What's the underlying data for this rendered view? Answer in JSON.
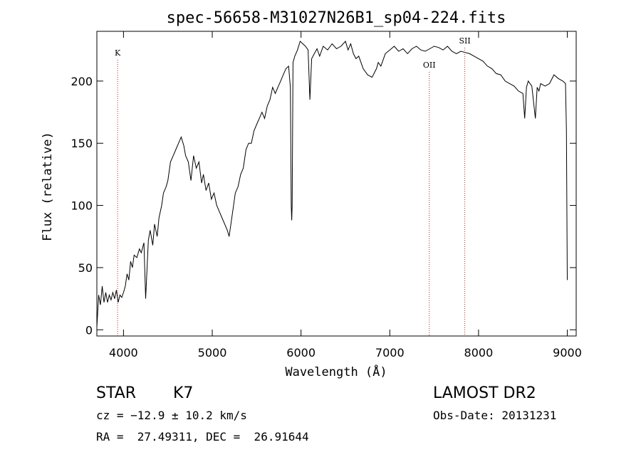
{
  "chart_data": {
    "type": "line",
    "title": "spec-56658-M31027N26B1_sp04-224.fits",
    "xlabel": "Wavelength (Å)",
    "ylabel": "Flux (relative)",
    "xlim": [
      3700,
      9100
    ],
    "ylim": [
      -5,
      240
    ],
    "x_ticks": [
      4000,
      5000,
      6000,
      7000,
      8000,
      9000
    ],
    "y_ticks": [
      0,
      50,
      100,
      150,
      200
    ],
    "grid": false,
    "line_color": "#000000",
    "marker_color": "#b22222",
    "series": [
      {
        "x": [
          3700,
          3720,
          3740,
          3760,
          3780,
          3800,
          3820,
          3840,
          3860,
          3880,
          3900,
          3920,
          3940,
          3960,
          3980,
          4000,
          4020,
          4040,
          4060,
          4080,
          4100,
          4120,
          4150,
          4180,
          4200,
          4230,
          4250,
          4280,
          4300,
          4330,
          4350,
          4380,
          4400,
          4430,
          4450,
          4480,
          4500,
          4530,
          4560,
          4590,
          4620,
          4650,
          4680,
          4700,
          4730,
          4760,
          4790,
          4820,
          4850,
          4880,
          4900,
          4930,
          4960,
          4990,
          5020,
          5050,
          5080,
          5110,
          5140,
          5170,
          5190,
          5210,
          5230,
          5260,
          5290,
          5320,
          5350,
          5380,
          5410,
          5440,
          5470,
          5500,
          5530,
          5560,
          5590,
          5620,
          5650,
          5680,
          5710,
          5740,
          5770,
          5800,
          5830,
          5860,
          5880,
          5890,
          5895,
          5900,
          5910,
          5930,
          5960,
          5990,
          6020,
          6050,
          6080,
          6100,
          6120,
          6150,
          6180,
          6210,
          6250,
          6300,
          6350,
          6400,
          6450,
          6500,
          6530,
          6560,
          6590,
          6620,
          6650,
          6700,
          6750,
          6800,
          6850,
          6870,
          6900,
          6950,
          7000,
          7050,
          7100,
          7150,
          7200,
          7250,
          7300,
          7350,
          7400,
          7450,
          7500,
          7550,
          7600,
          7650,
          7700,
          7750,
          7800,
          7850,
          7900,
          7950,
          8000,
          8050,
          8100,
          8150,
          8200,
          8250,
          8300,
          8350,
          8400,
          8450,
          8500,
          8520,
          8540,
          8560,
          8600,
          8640,
          8660,
          8680,
          8700,
          8750,
          8800,
          8850,
          8900,
          8950,
          8980,
          8990,
          9000
        ],
        "y": [
          2,
          28,
          20,
          35,
          22,
          30,
          22,
          28,
          24,
          30,
          25,
          32,
          22,
          28,
          26,
          30,
          35,
          45,
          40,
          55,
          50,
          60,
          58,
          65,
          62,
          70,
          25,
          72,
          80,
          68,
          85,
          75,
          90,
          100,
          110,
          115,
          120,
          135,
          140,
          145,
          150,
          155,
          148,
          140,
          135,
          120,
          140,
          130,
          135,
          118,
          125,
          112,
          118,
          105,
          110,
          100,
          95,
          90,
          85,
          80,
          75,
          85,
          95,
          110,
          115,
          125,
          130,
          145,
          150,
          150,
          160,
          165,
          170,
          175,
          170,
          180,
          185,
          195,
          190,
          195,
          200,
          205,
          210,
          212,
          195,
          100,
          88,
          100,
          215,
          220,
          225,
          232,
          230,
          228,
          225,
          185,
          218,
          222,
          226,
          220,
          228,
          225,
          230,
          226,
          228,
          232,
          225,
          230,
          222,
          218,
          220,
          210,
          205,
          203,
          210,
          215,
          212,
          222,
          225,
          228,
          224,
          226,
          222,
          226,
          228,
          225,
          224,
          226,
          228,
          227,
          225,
          228,
          224,
          222,
          224,
          223,
          222,
          220,
          218,
          216,
          212,
          210,
          206,
          205,
          200,
          198,
          196,
          192,
          190,
          170,
          195,
          200,
          196,
          170,
          195,
          192,
          198,
          196,
          198,
          205,
          202,
          200,
          198,
          160,
          40
        ]
      }
    ],
    "markers": [
      {
        "label": "K",
        "x": 3934
      },
      {
        "label": "OII",
        "x": 7445
      },
      {
        "label": "SII",
        "x": 7845
      }
    ]
  },
  "footer": {
    "object_class": "STAR",
    "subclass": "K7",
    "survey": "LAMOST DR2",
    "velocity": "cz = −12.9 ± 10.2 km/s",
    "obs_date": "Obs-Date: 20131231",
    "coords": "RA =  27.49311, DEC =  26.91644"
  }
}
